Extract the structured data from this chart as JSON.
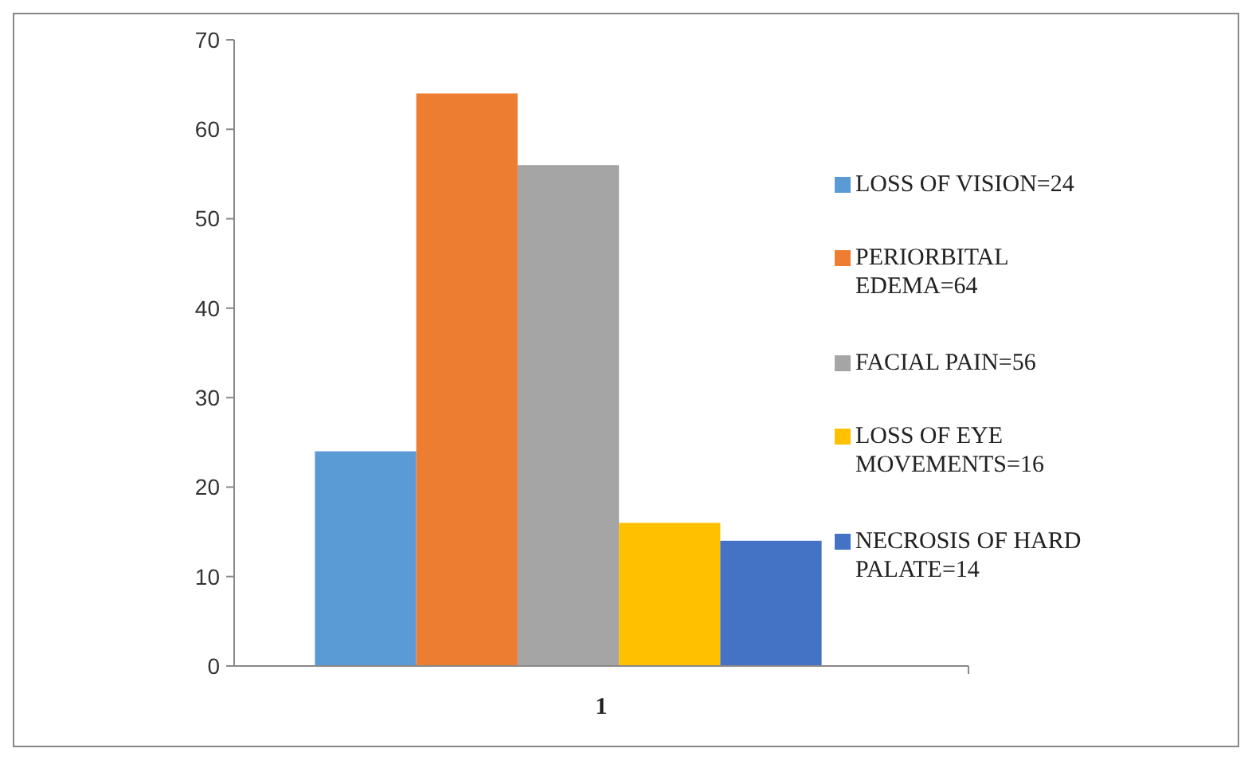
{
  "chart_data": {
    "type": "bar",
    "categories": [
      "1"
    ],
    "series": [
      {
        "name": "LOSS OF VISION=24",
        "color": "#5b9bd5",
        "values": [
          24
        ]
      },
      {
        "name": "PERIORBITAL EDEMA=64",
        "color": "#ed7d31",
        "values": [
          64
        ]
      },
      {
        "name": "FACIAL PAIN=56",
        "color": "#a5a5a5",
        "values": [
          56
        ]
      },
      {
        "name": "LOSS OF EYE MOVEMENTS=16",
        "color": "#ffc000",
        "values": [
          16
        ]
      },
      {
        "name": "NECROSIS OF HARD PALATE=14",
        "color": "#4472c4",
        "values": [
          14
        ]
      }
    ],
    "ylim": [
      0,
      70
    ],
    "yticks": [
      0,
      10,
      20,
      30,
      40,
      50,
      60,
      70
    ],
    "grid": false,
    "legend": "right"
  }
}
